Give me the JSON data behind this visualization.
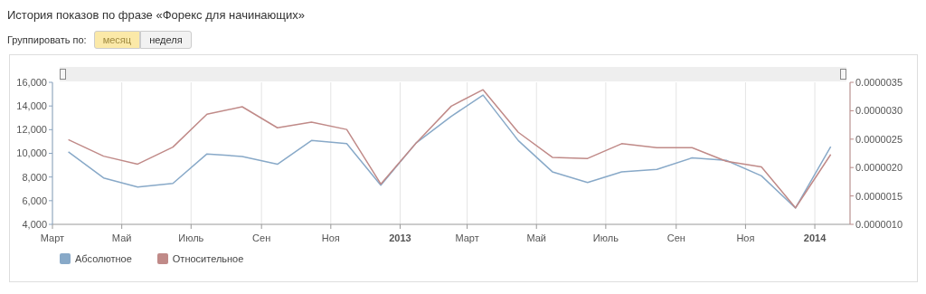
{
  "chart_data": {
    "type": "line",
    "title": "История показов по фразе «Форекс для начинающих»",
    "annotations": [
      "Группировать по:",
      "месяц",
      "неделя"
    ],
    "x": [
      "2012-03-15",
      "2012-04-15",
      "2012-05-15",
      "2012-06-15",
      "2012-07-15",
      "2012-08-15",
      "2012-09-15",
      "2012-10-15",
      "2012-11-15",
      "2012-12-15",
      "2013-01-15",
      "2013-02-15",
      "2013-03-15",
      "2013-04-15",
      "2013-05-15",
      "2013-06-15",
      "2013-07-15",
      "2013-08-15",
      "2013-09-15",
      "2013-10-15",
      "2013-11-15",
      "2013-12-15",
      "2014-01-15"
    ],
    "series": [
      {
        "name": "Абсолютное",
        "color": "#88a9c8",
        "values": [
          10130,
          7920,
          7150,
          7460,
          9950,
          9740,
          9080,
          11080,
          10820,
          7310,
          10870,
          13130,
          14920,
          11080,
          8440,
          7540,
          8440,
          8640,
          9620,
          9410,
          8100,
          5380,
          10560
        ]
      },
      {
        "name": "Относительное",
        "color": "#c08a88",
        "axis": "y2",
        "values": [
          2.49e-06,
          2.2e-06,
          2.06e-06,
          2.36e-06,
          2.94e-06,
          3.07e-06,
          2.7e-06,
          2.8e-06,
          2.67e-06,
          1.71e-06,
          2.43e-06,
          3.08e-06,
          3.37e-06,
          2.62e-06,
          2.18e-06,
          2.16e-06,
          2.42e-06,
          2.35e-06,
          2.35e-06,
          2.11e-06,
          2.01e-06,
          1.29e-06,
          2.23e-06
        ]
      }
    ],
    "xlim": [
      "2012-03-01",
      "2014-02-01"
    ],
    "xticks": [
      {
        "value": "2012-03-01",
        "label": "Март"
      },
      {
        "value": "2012-05-01",
        "label": "Май"
      },
      {
        "value": "2012-07-01",
        "label": "Июль"
      },
      {
        "value": "2012-09-01",
        "label": "Сен"
      },
      {
        "value": "2012-11-01",
        "label": "Ноя"
      },
      {
        "value": "2013-01-01",
        "label": "2013"
      },
      {
        "value": "2013-03-01",
        "label": "Март"
      },
      {
        "value": "2013-05-01",
        "label": "Май"
      },
      {
        "value": "2013-07-01",
        "label": "Июль"
      },
      {
        "value": "2013-09-01",
        "label": "Сен"
      },
      {
        "value": "2013-11-01",
        "label": "Ноя"
      },
      {
        "value": "2014-01-01",
        "label": "2014"
      }
    ],
    "ylim": [
      4000,
      16000
    ],
    "yticks": [
      {
        "value": 4000,
        "label": "4,000"
      },
      {
        "value": 6000,
        "label": "6,000"
      },
      {
        "value": 8000,
        "label": "8,000"
      },
      {
        "value": 10000,
        "label": "10,000"
      },
      {
        "value": 12000,
        "label": "12,000"
      },
      {
        "value": 14000,
        "label": "14,000"
      },
      {
        "value": 16000,
        "label": "16,000"
      }
    ],
    "y2lim": [
      1e-06,
      3.5e-06
    ],
    "y2ticks": [
      {
        "value": 1e-06,
        "label": "0.0000010"
      },
      {
        "value": 1.5e-06,
        "label": "0.0000015"
      },
      {
        "value": 2e-06,
        "label": "0.0000020"
      },
      {
        "value": 2.5e-06,
        "label": "0.0000025"
      },
      {
        "value": 3e-06,
        "label": "0.0000030"
      },
      {
        "value": 3.5e-06,
        "label": "0.0000035"
      }
    ],
    "grid": "x",
    "legend": "bottom left",
    "marker": "none",
    "line_style": "solid"
  }
}
